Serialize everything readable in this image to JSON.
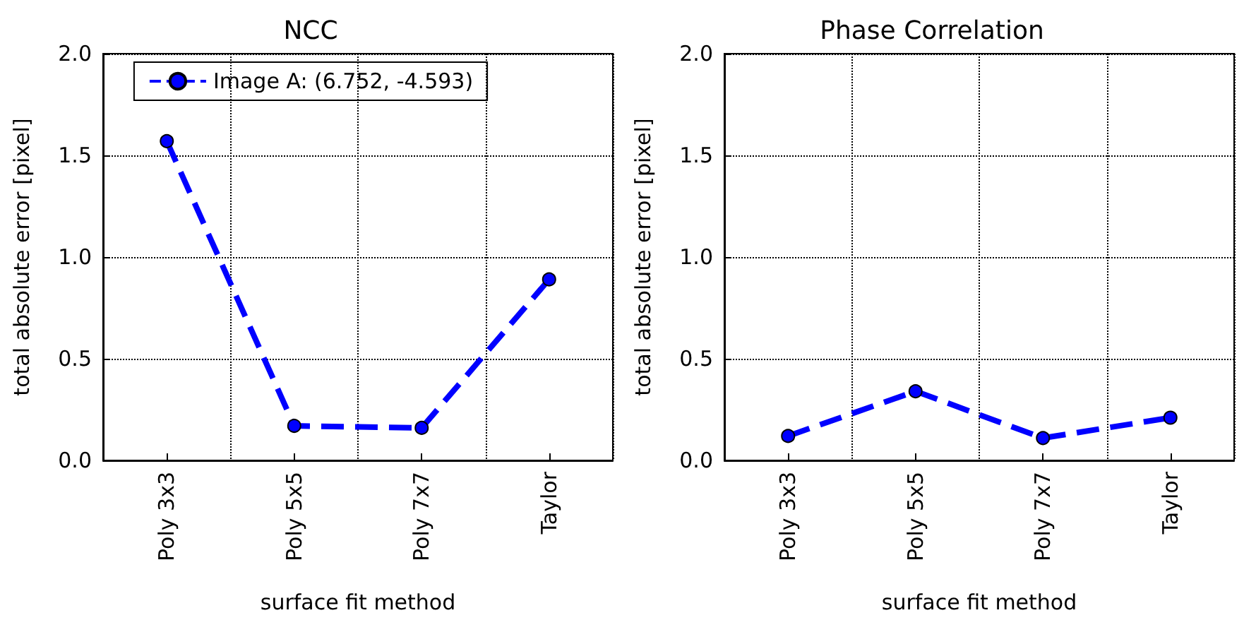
{
  "chart_data": [
    {
      "type": "line",
      "title": "NCC",
      "xlabel": "surface fit method",
      "ylabel": "total absolute error [pixel]",
      "categories": [
        "Poly 3x3",
        "Poly 5x5",
        "Poly 7x7",
        "Taylor"
      ],
      "series": [
        {
          "name": "Image A: (6.752, -4.593)",
          "color": "#0000ff",
          "values": [
            1.57,
            0.17,
            0.16,
            0.89
          ]
        }
      ],
      "ylim": [
        0,
        2
      ],
      "yticks": [
        {
          "value": 0,
          "label": "0.0"
        },
        {
          "value": 0.5,
          "label": "0.5"
        },
        {
          "value": 1,
          "label": "1.0"
        },
        {
          "value": 1.5,
          "label": "1.5"
        },
        {
          "value": 2,
          "label": "2.0"
        }
      ],
      "grid": true,
      "legend": "top",
      "marker": "circle",
      "line_style": "dashed"
    },
    {
      "type": "line",
      "title": "Phase Correlation",
      "xlabel": "surface fit method",
      "ylabel": "total absolute error [pixel]",
      "categories": [
        "Poly 3x3",
        "Poly 5x5",
        "Poly 7x7",
        "Taylor"
      ],
      "series": [
        {
          "color": "#0000ff",
          "values": [
            0.12,
            0.34,
            0.11,
            0.21
          ]
        }
      ],
      "ylim": [
        0,
        2
      ],
      "yticks": [
        {
          "value": 0,
          "label": "0.0"
        },
        {
          "value": 0.5,
          "label": "0.5"
        },
        {
          "value": 1,
          "label": "1.0"
        },
        {
          "value": 1.5,
          "label": "1.5"
        },
        {
          "value": 2,
          "label": "2.0"
        }
      ],
      "grid": true,
      "marker": "circle",
      "line_style": "dashed"
    }
  ]
}
